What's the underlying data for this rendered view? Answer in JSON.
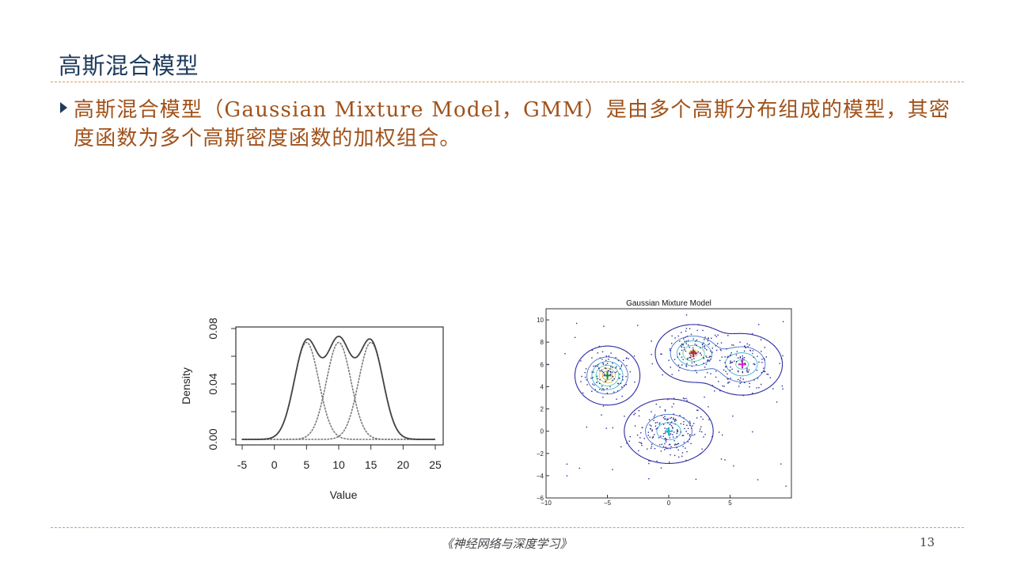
{
  "slide": {
    "title": "高斯混合模型",
    "bullet": "高斯混合模型（Gaussian Mixture Model，GMM）是由多个高斯分布组成的模型，其密度函数为多个高斯密度函数的加权组合。",
    "footer": "《神经网络与深度学习》",
    "page_number": "13"
  },
  "colors": {
    "title": "#1f3b5c",
    "bullet_text": "#a0521a",
    "rule": "#e0985a"
  },
  "chart_data": [
    {
      "type": "line",
      "title": "",
      "xlabel": "Value",
      "ylabel": "Density",
      "xlim": [
        -5,
        25
      ],
      "ylim": [
        0,
        0.08
      ],
      "xticks": [
        "-5",
        "0",
        "5",
        "10",
        "15",
        "20",
        "25"
      ],
      "yticks": [
        "0.00",
        "0.04",
        "0.08"
      ],
      "components": [
        {
          "mean": 5,
          "sd": 1.9,
          "weight": 0.3333
        },
        {
          "mean": 10,
          "sd": 1.9,
          "weight": 0.3333
        },
        {
          "mean": 15,
          "sd": 1.9,
          "weight": 0.3333
        }
      ],
      "series": [
        {
          "style": "solid",
          "role": "mixture density"
        },
        {
          "style": "dotted",
          "role": "component 1"
        },
        {
          "style": "dotted",
          "role": "component 2"
        },
        {
          "style": "dotted",
          "role": "component 3"
        }
      ],
      "grid": false
    },
    {
      "type": "scatter",
      "title": "Gaussian Mixture Model",
      "xlim": [
        -10,
        10
      ],
      "ylim": [
        -6,
        11
      ],
      "xticks": [
        "−10",
        "−5",
        "0",
        "5"
      ],
      "yticks": [
        "−6",
        "−4",
        "−2",
        "0",
        "2",
        "4",
        "6",
        "8",
        "10"
      ],
      "clusters": [
        {
          "center": [
            -5,
            5
          ],
          "spread": [
            1.0,
            1.0
          ],
          "count": 110,
          "marker_color": "#1a8a2a"
        },
        {
          "center": [
            0,
            0
          ],
          "spread": [
            1.5,
            1.2
          ],
          "count": 200,
          "marker_color": "#1ab8c8"
        },
        {
          "center": [
            2,
            7
          ],
          "spread": [
            1.2,
            1.0
          ],
          "count": 130,
          "marker_color": "#cc2222"
        },
        {
          "center": [
            6,
            6
          ],
          "spread": [
            1.3,
            1.1
          ],
          "count": 130,
          "marker_color": "#cc22cc"
        }
      ],
      "outer_contour_color": "#2a2aa0",
      "point_color": "#2a2a9a",
      "grid": false
    }
  ]
}
